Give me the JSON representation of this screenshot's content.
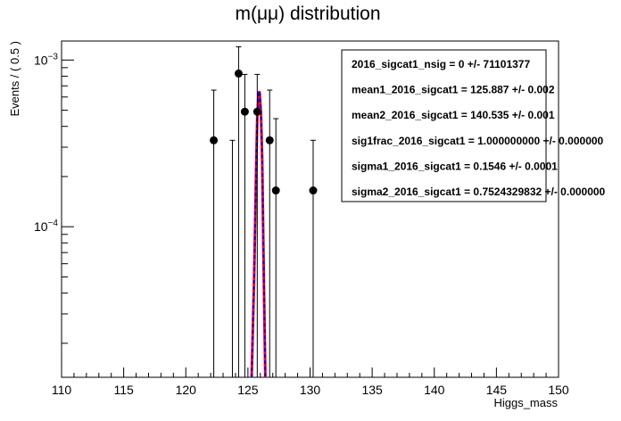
{
  "chart_data": {
    "type": "scatter",
    "title": "m(μμ) distribution",
    "xlabel": "Higgs_mass",
    "ylabel": "Events / ( 0.5 )",
    "xlim": [
      110,
      150
    ],
    "ylim": [
      1.25e-05,
      0.0013
    ],
    "yscale": "log",
    "x_ticks": [
      "110",
      "115",
      "120",
      "125",
      "130",
      "135",
      "140",
      "145",
      "150"
    ],
    "x_tick_values": [
      110,
      115,
      120,
      125,
      130,
      135,
      140,
      145,
      150
    ],
    "y_ticks": [
      {
        "value": 0.001,
        "base": "10",
        "exp": "−3"
      },
      {
        "value": 0.0001,
        "base": "10",
        "exp": "−4"
      }
    ],
    "grid": false,
    "points": [
      {
        "x": 122.25,
        "y": 0.00033,
        "err_lo": 0.00033,
        "err_hi": 0.00033
      },
      {
        "x": 124.25,
        "y": 0.00083,
        "err_lo": 0.00083,
        "err_hi": 0.00037
      },
      {
        "x": 124.75,
        "y": 0.00049,
        "err_lo": 0.00049,
        "err_hi": 0.00033
      },
      {
        "x": 125.75,
        "y": 0.00049,
        "err_lo": 0.00049,
        "err_hi": 0.00033
      },
      {
        "x": 126.75,
        "y": 0.00033,
        "err_lo": 0.00033,
        "err_hi": 0.00033
      },
      {
        "x": 127.25,
        "y": 0.000165,
        "err_lo": 0.000165,
        "err_hi": 0.00028
      },
      {
        "x": 130.25,
        "y": 0.000165,
        "err_lo": 0.000165,
        "err_hi": 0.000165
      }
    ],
    "bar_points": [
      {
        "x": 123.75,
        "err_hi": 0.00033
      }
    ],
    "model_curve": {
      "color": "#ff0000",
      "dash_color": "#0000ff",
      "peak_y": 0.00065,
      "samples": [
        {
          "x": 125.3,
          "y": 1.25e-05
        },
        {
          "x": 125.5,
          "y": 5e-05
        },
        {
          "x": 125.65,
          "y": 0.0002
        },
        {
          "x": 125.75,
          "y": 0.00045
        },
        {
          "x": 125.85,
          "y": 0.00062
        },
        {
          "x": 125.9,
          "y": 0.00065
        },
        {
          "x": 125.95,
          "y": 0.00063
        },
        {
          "x": 126.05,
          "y": 0.00048
        },
        {
          "x": 126.15,
          "y": 0.00025
        },
        {
          "x": 126.25,
          "y": 7e-05
        },
        {
          "x": 126.4,
          "y": 1.25e-05
        }
      ]
    },
    "stats_box": [
      "2016_sigcat1_nsig =  0 +/- 71101377",
      "mean1_2016_sigcat1 =  125.887 +/- 0.002",
      "mean2_2016_sigcat1 =  140.535 +/- 0.001",
      "sig1frac_2016_sigcat1 =  1.000000000 +/- 0.000000",
      "sigma1_2016_sigcat1 =  0.1546 +/- 0.0001",
      "sigma2_2016_sigcat1 =  0.7524329832 +/- 0.000000"
    ]
  }
}
